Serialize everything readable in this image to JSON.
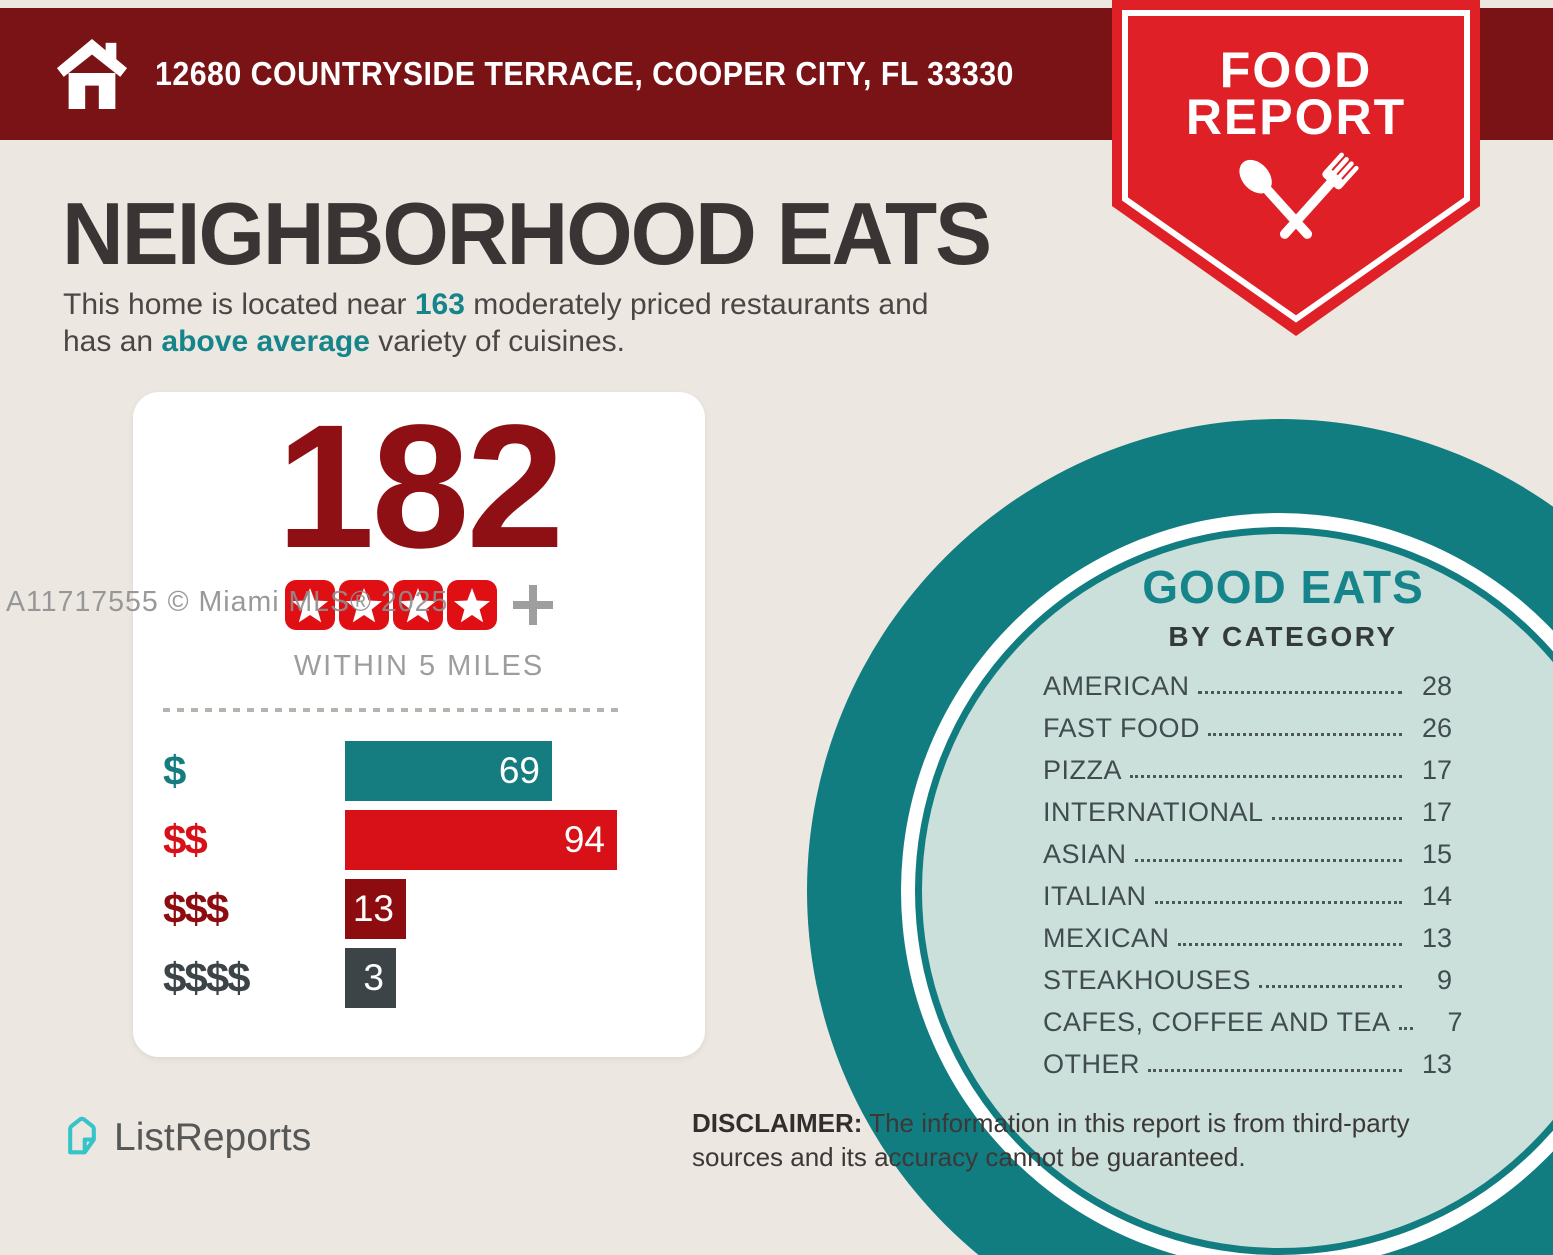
{
  "colors": {
    "background": "#ece8e1",
    "header_bar": "#7a1316",
    "ribbon_red": "#e02027",
    "accent_teal": "#16858b",
    "heading_dark": "#3a3435",
    "body_text": "#4c4545",
    "count_dark_red": "#8e1014",
    "star_red": "#e00f14",
    "plus_gray": "#9e9e9e",
    "muted_gray": "#9d9d9d",
    "circle_ring_teal": "#117d80",
    "circle_fill": "#cbdfdb",
    "category_text": "#404c4d",
    "logo_teal": "#35c4c8",
    "logo_text_gray": "#575757",
    "watermark_gray": "#8f8f8f"
  },
  "header": {
    "address": "12680 COUNTRYSIDE TERRACE, COOPER CITY, FL 33330"
  },
  "ribbon": {
    "line1": "FOOD",
    "line2": "REPORT"
  },
  "hero": {
    "title": "NEIGHBORHOOD EATS",
    "subtitle_lines": [
      [
        {
          "text": "This home is located near "
        },
        {
          "text": "163",
          "highlight": true
        },
        {
          "text": " moderately priced restaurants and"
        }
      ],
      [
        {
          "text": "has an "
        },
        {
          "text": "above average",
          "highlight": true
        },
        {
          "text": " variety of cuisines."
        }
      ]
    ]
  },
  "chart_data": [
    {
      "type": "bar",
      "orientation": "horizontal",
      "total_label": "182",
      "rating_stars": 4,
      "rating_suffix": "+",
      "footnote": "WITHIN 5 MILES",
      "categories": [
        "$",
        "$$",
        "$$$",
        "$$$$"
      ],
      "values": [
        69,
        94,
        13,
        3
      ],
      "bar_colors": [
        "#157d80",
        "#d81017",
        "#8d0c10",
        "#3d4448"
      ],
      "value_labels_inside": true,
      "legend": "none",
      "grid": false
    },
    {
      "type": "table",
      "title": "GOOD EATS",
      "subtitle": "BY CATEGORY",
      "categories": [
        "AMERICAN",
        "FAST FOOD",
        "PIZZA",
        "INTERNATIONAL",
        "ASIAN",
        "ITALIAN",
        "MEXICAN",
        "STEAKHOUSES",
        "CAFES, COFFEE AND TEA",
        "OTHER"
      ],
      "values": [
        28,
        26,
        17,
        17,
        15,
        14,
        13,
        9,
        7,
        13
      ]
    }
  ],
  "footer": {
    "logo_text": "ListReports",
    "disclaimer_label": "DISCLAIMER:",
    "disclaimer_text": " The information in this report is from third-party sources and its accuracy cannot be guaranteed."
  },
  "watermark": "A11717555 © Miami MLS® 2025"
}
